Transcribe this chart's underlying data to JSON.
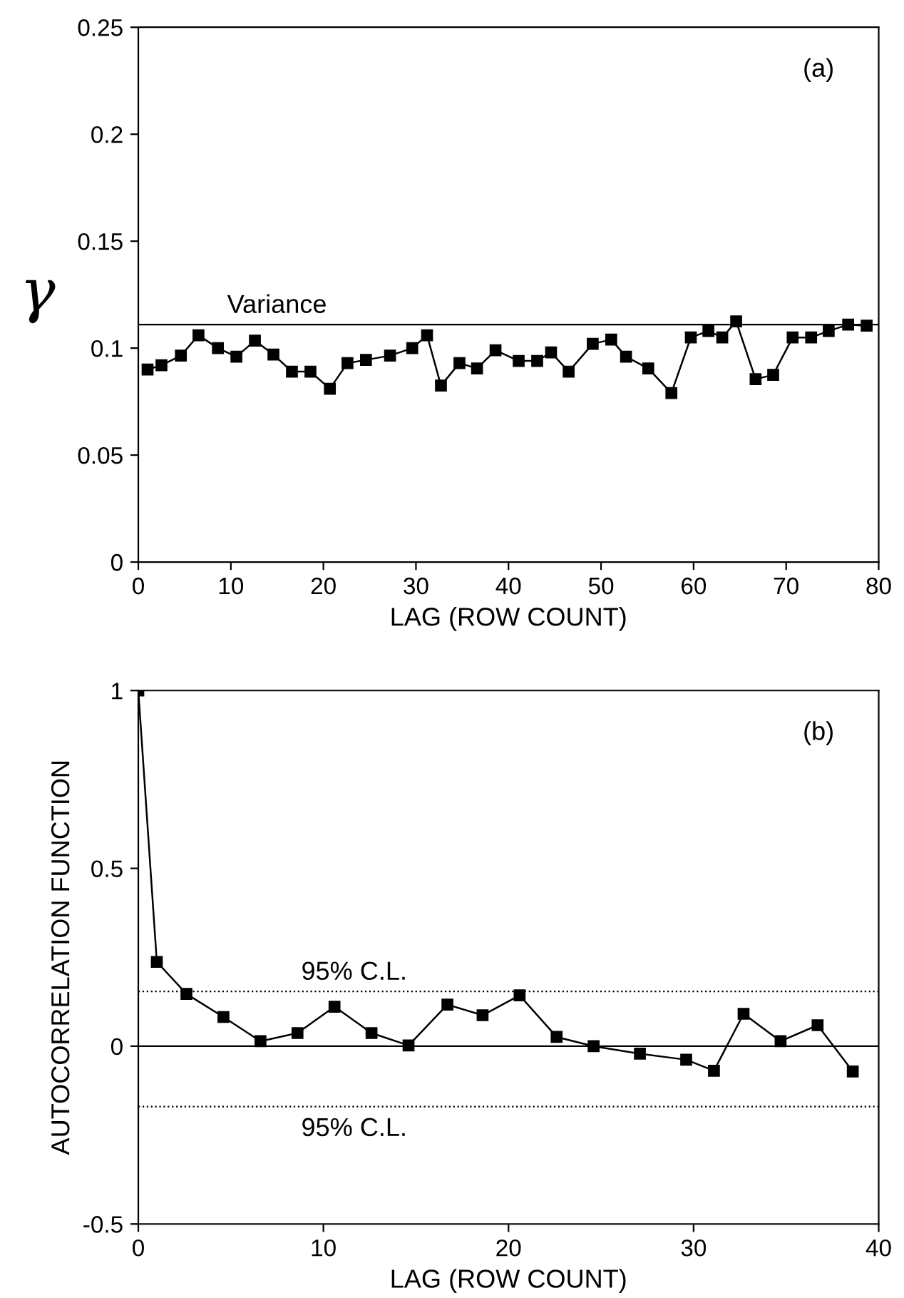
{
  "chart_data": [
    {
      "type": "line",
      "ylabel": "γ",
      "xlabel": "LAG (ROW COUNT)",
      "annotations": [
        "(a)"
      ],
      "marker": "square",
      "x": [
        1.0,
        2.5,
        4.6,
        6.5,
        8.6,
        10.6,
        12.6,
        14.6,
        16.6,
        18.6,
        20.7,
        22.6,
        24.6,
        27.2,
        29.6,
        31.2,
        32.7,
        34.7,
        36.6,
        38.6,
        41.1,
        43.1,
        44.6,
        46.5,
        49.1,
        51.1,
        52.7,
        55.1,
        57.6,
        59.7,
        61.6,
        63.1,
        64.6,
        66.7,
        68.6,
        70.7,
        72.7,
        74.6,
        76.7,
        78.7
      ],
      "series": [
        {
          "color": "#000000",
          "values": [
            0.09,
            0.092,
            0.0965,
            0.106,
            0.1,
            0.096,
            0.1035,
            0.097,
            0.089,
            0.089,
            0.081,
            0.093,
            0.0945,
            0.0965,
            0.1,
            0.106,
            0.0825,
            0.093,
            0.0905,
            0.099,
            0.094,
            0.094,
            0.098,
            0.089,
            0.102,
            0.104,
            0.096,
            0.0905,
            0.079,
            0.105,
            0.108,
            0.105,
            0.1125,
            0.0855,
            0.0875,
            0.105,
            0.105,
            0.108,
            0.111,
            0.1105
          ]
        }
      ],
      "ref_lines": [
        {
          "axis": "y",
          "value": 0.111,
          "label": "Variance",
          "color": "#000000",
          "line_style": "solid"
        }
      ],
      "xlim": [
        0,
        80
      ],
      "xticks": [
        0,
        10,
        20,
        30,
        40,
        50,
        60,
        70,
        80
      ],
      "ylim": [
        0,
        0.25
      ],
      "yticks": [
        0,
        0.05,
        0.1,
        0.15,
        0.2,
        0.25
      ],
      "grid": false,
      "legend": false
    },
    {
      "type": "line",
      "ylabel": "AUTOCORRELATION FUNCTION",
      "xlabel": "LAG (ROW COUNT)",
      "annotations": [
        "(b)"
      ],
      "marker": "square",
      "x": [
        0,
        1.0,
        2.6,
        4.6,
        6.6,
        8.6,
        10.6,
        12.6,
        14.6,
        16.7,
        18.6,
        20.6,
        22.6,
        24.6,
        27.1,
        29.6,
        31.1,
        32.7,
        34.7,
        36.7,
        38.6
      ],
      "series": [
        {
          "color": "#000000",
          "values": [
            1.0,
            0.237,
            0.147,
            0.082,
            0.014,
            0.037,
            0.111,
            0.037,
            0.002,
            0.117,
            0.087,
            0.143,
            0.026,
            0.0,
            -0.021,
            -0.038,
            -0.069,
            0.091,
            0.014,
            0.059,
            -0.071
          ]
        }
      ],
      "ref_lines": [
        {
          "axis": "y",
          "value": 0,
          "label": null,
          "color": "#000000",
          "line_style": "solid"
        },
        {
          "axis": "y",
          "value": 0.154,
          "label": "95% C.L.",
          "color": "#000000",
          "line_style": "dotted"
        },
        {
          "axis": "y",
          "value": -0.17,
          "label": "95% C.L.",
          "color": "#000000",
          "line_style": "dotted"
        }
      ],
      "xlim": [
        0,
        40
      ],
      "xticks": [
        0,
        10,
        20,
        30,
        40
      ],
      "ylim": [
        -0.5,
        1
      ],
      "yticks": [
        {
          "value": -0.5,
          "label": "-0.5"
        },
        0,
        0.5,
        1
      ],
      "grid": false,
      "legend": false
    }
  ]
}
